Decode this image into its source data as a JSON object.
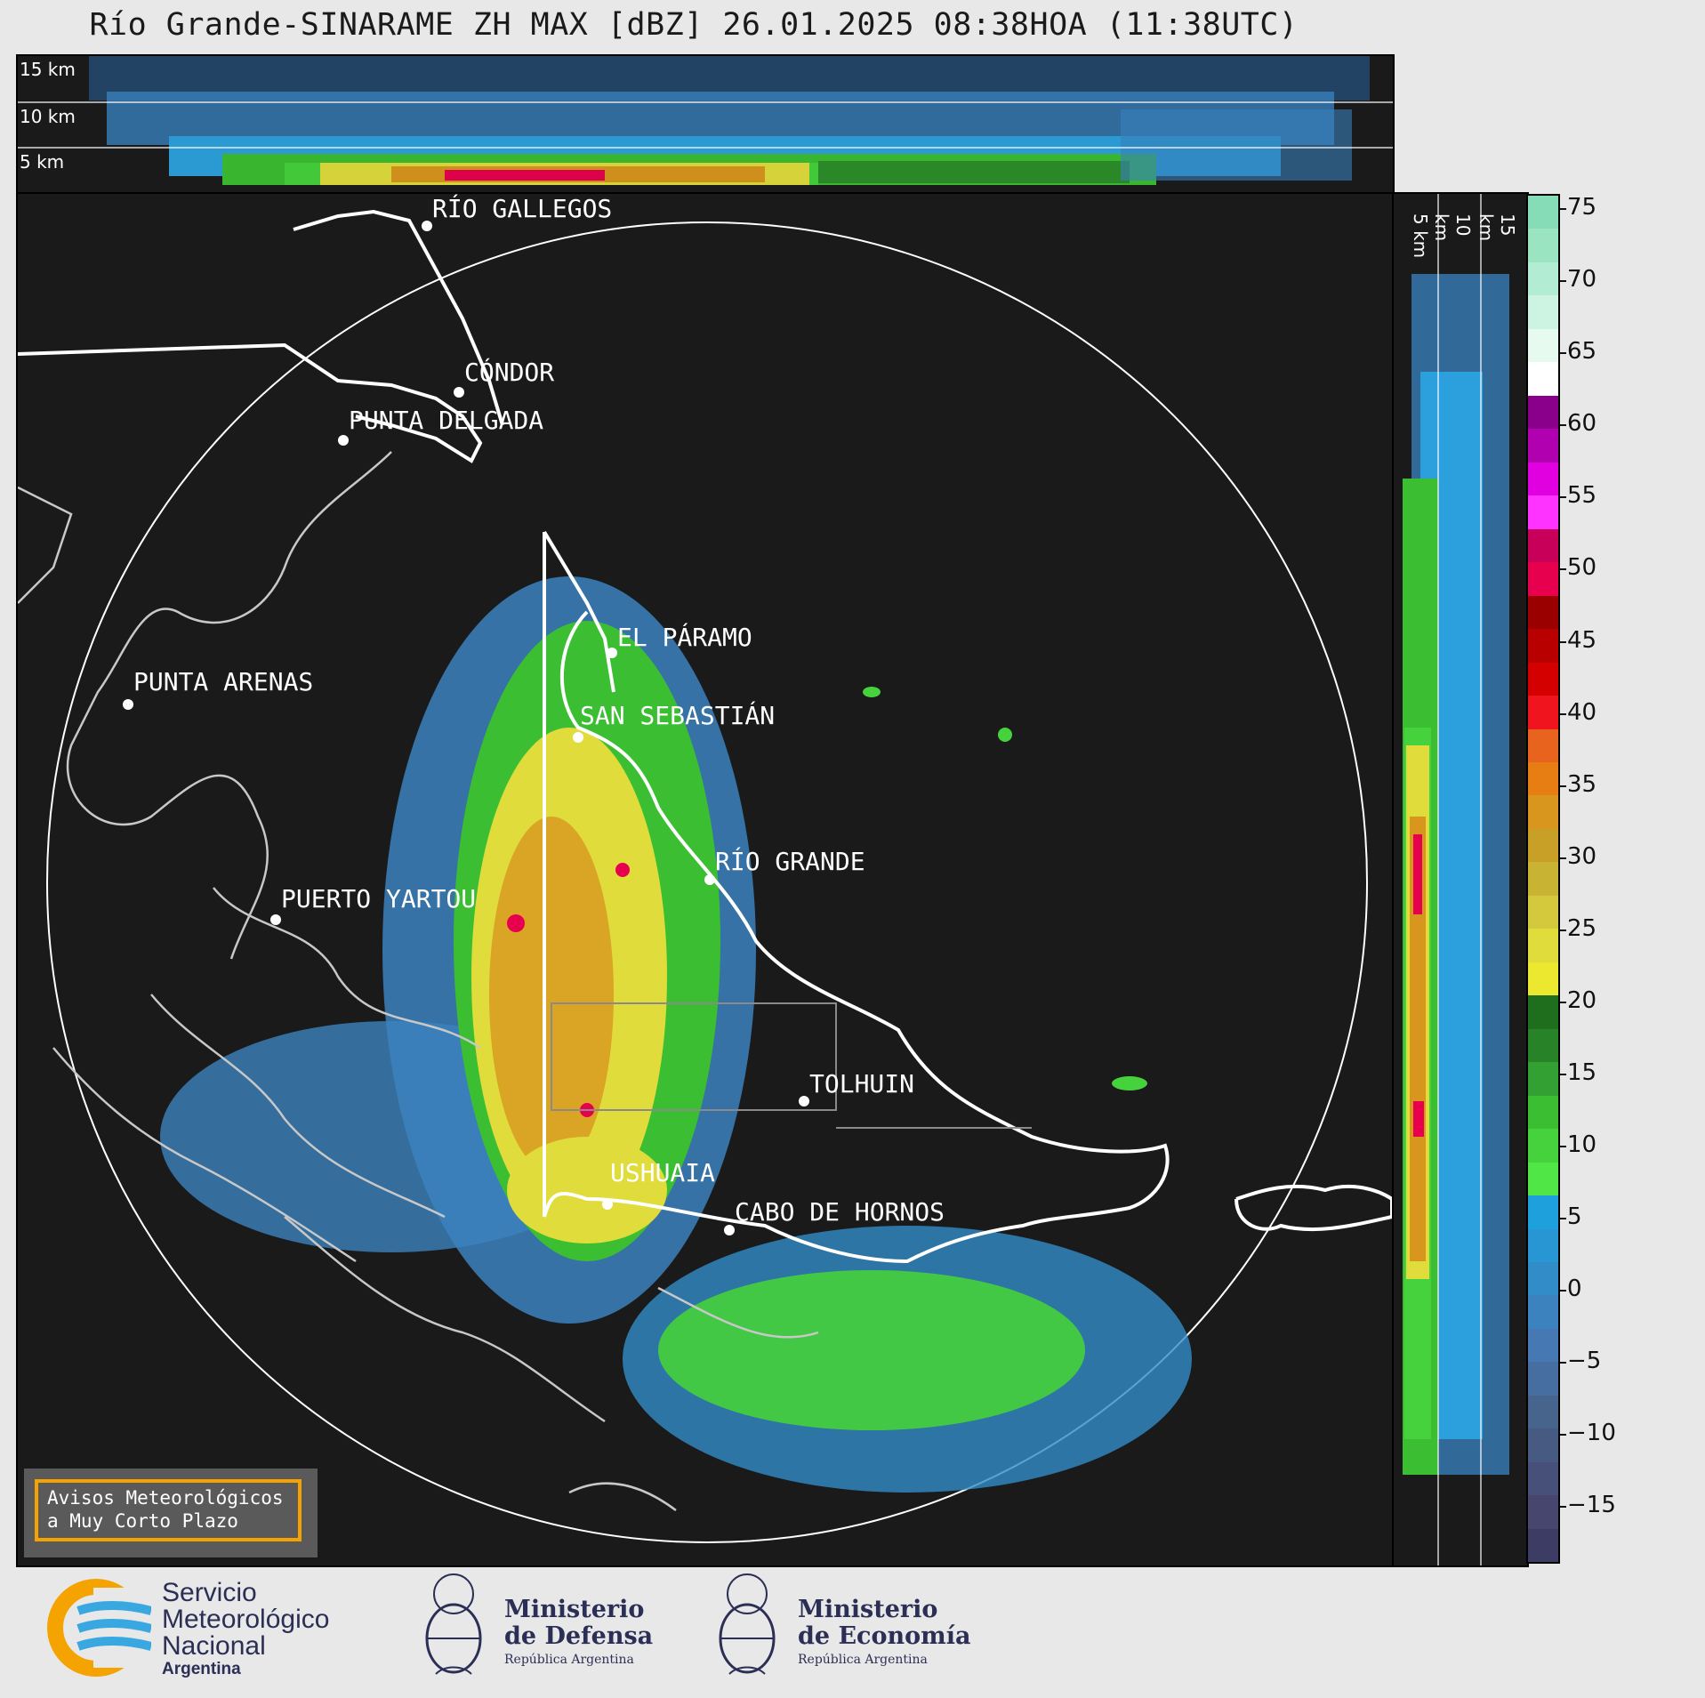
{
  "title": "Río Grande-SINARAME ZH MAX [dBZ] 26.01.2025 08:38HOA (11:38UTC)",
  "top_section_labels": [
    "15 km",
    "10 km",
    "5 km"
  ],
  "side_section_labels": [
    "5 km",
    "10 km",
    "15 km"
  ],
  "locations": [
    {
      "name": "RÍO GALLEGOS"
    },
    {
      "name": "CÓNDOR"
    },
    {
      "name": "PUNTA DELGADA"
    },
    {
      "name": "EL PÁRAMO"
    },
    {
      "name": "PUNTA ARENAS"
    },
    {
      "name": "SAN SEBASTIÁN"
    },
    {
      "name": "RÍO GRANDE"
    },
    {
      "name": "PUERTO YARTOU"
    },
    {
      "name": "TOLHUIN"
    },
    {
      "name": "USHUAIA"
    },
    {
      "name": "CABO DE HORNOS"
    }
  ],
  "colorbar": {
    "unit": "dBZ",
    "ticks": [
      "75",
      "70",
      "65",
      "60",
      "55",
      "50",
      "45",
      "40",
      "35",
      "30",
      "25",
      "20",
      "15",
      "10",
      "5",
      "0",
      "−5",
      "−10",
      "−15"
    ],
    "range": [
      -19,
      76
    ],
    "colors_high_to_low": [
      "#86dcb6",
      "#9be4c2",
      "#b2ecd2",
      "#cdf4e2",
      "#e6faf0",
      "#ffffff",
      "#8b008b",
      "#b000b0",
      "#e000e0",
      "#ff33ff",
      "#c8005a",
      "#e6004d",
      "#9b0000",
      "#b80000",
      "#d40000",
      "#f0141e",
      "#e8641e",
      "#e67e14",
      "#d8961e",
      "#c8a028",
      "#c8b432",
      "#d4c83c",
      "#e0dc3c",
      "#ece830",
      "#1e6e1e",
      "#288228",
      "#32a032",
      "#3cbe32",
      "#46d23c",
      "#50e646",
      "#1ea0dc",
      "#2896d2",
      "#328cc8",
      "#3c82be",
      "#4678b4",
      "#466ea0",
      "#46648c",
      "#465a82",
      "#465078",
      "#46466e",
      "#3c3c64"
    ]
  },
  "avisos_lines": [
    "Avisos Meteorológicos",
    "a Muy Corto Plazo"
  ],
  "logos": {
    "smn": {
      "line1": "Servicio",
      "line2": "Meteorológico",
      "line3": "Nacional",
      "line4": "Argentina"
    },
    "defensa": {
      "line1": "Ministerio",
      "line2": "de Defensa",
      "line3": "República Argentina"
    },
    "economia": {
      "line1": "Ministerio",
      "line2": "de Economía",
      "line3": "República Argentina"
    }
  }
}
